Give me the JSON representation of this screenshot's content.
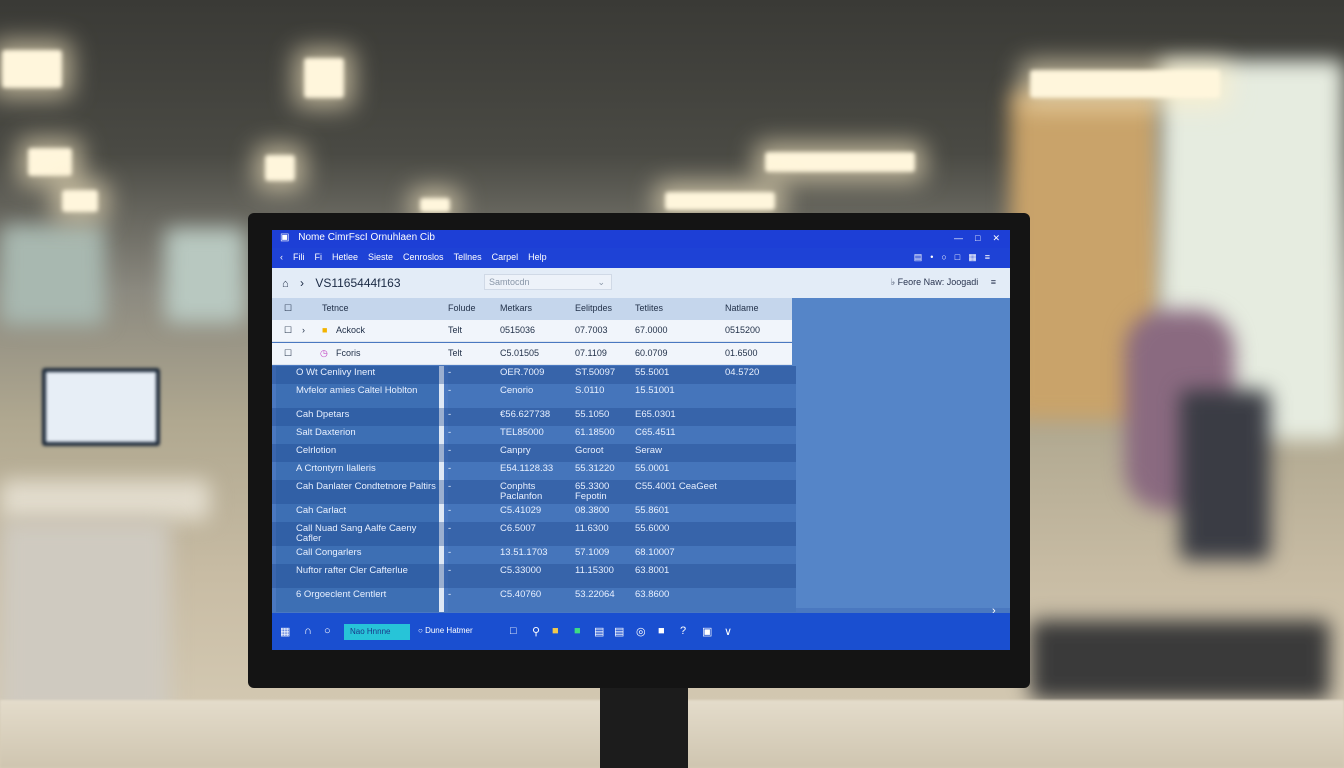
{
  "window": {
    "title": "Nome CimrFscI Ornuhlaen Cib",
    "controls": [
      "-",
      "○",
      "―",
      "□",
      "✕"
    ]
  },
  "menu": [
    "Fili",
    "Fi",
    "Hetlee",
    "Sieste",
    "Cenroslos",
    "Tellnes",
    "Carpel",
    "Help"
  ],
  "toolbar": {
    "record_id": "VS1165444f163",
    "dropdown_value": "Samtocdn",
    "right_label": "Feore Naw: Joogadi"
  },
  "table": {
    "headers": [
      "Tetnce",
      "Folude",
      "Metkars",
      "Eelitpdes",
      "Tetlites",
      "Natlame"
    ],
    "top_rows": [
      {
        "name": "Ackock",
        "type": "Telt",
        "c1": "0515036",
        "c2": "07.7003",
        "c3": "67.0000",
        "c4": "0515200"
      },
      {
        "name": "Fcoris",
        "type": "Telt",
        "c1": "C5.01505",
        "c2": "07.1109",
        "c3": "60.0709",
        "c4": "01.6500"
      }
    ],
    "rows": [
      {
        "name": "O Wt Cenlivy Inent",
        "mark": "-",
        "c1": "OER.7009",
        "c2": "ST.50097",
        "c3": "55.5001",
        "c4": "04.5720"
      },
      {
        "name": "Mvfelor amies Caltel Hoblton",
        "mark": "-",
        "c1": "Cenorio",
        "c2": "S.0110",
        "c3": "15.51001",
        "c4": ""
      },
      {
        "name": "Cah Dpetars",
        "mark": "-",
        "c1": "€56.627738",
        "c2": "55.1050",
        "c3": "E65.0301",
        "c4": ""
      },
      {
        "name": "Salt Daxterion",
        "mark": "-",
        "c1": "TEL85000",
        "c2": "61.18500",
        "c3": "C65.4511",
        "c4": ""
      },
      {
        "name": "Celrlotion",
        "mark": "-",
        "c1": "Canpry",
        "c2": "Gcroot",
        "c3": "Seraw",
        "c4": ""
      },
      {
        "name": "A Crtontyrn Ilalleris",
        "mark": "-",
        "c1": "E54.1128.33",
        "c2": "55.31220",
        "c3": "55.0001",
        "c4": ""
      },
      {
        "name": "Cah Danlater Condtetnore Paltirs",
        "mark": "-",
        "c1": "Conphts Paclanfon",
        "c2": "65.3300 Fepotin",
        "c3": "C55.4001 CeaGeet",
        "c4": ""
      },
      {
        "name": "Cah Carlact",
        "mark": "-",
        "c1": "C5.41029",
        "c2": "08.3800",
        "c3": "55.8601",
        "c4": ""
      },
      {
        "name": "Call Nuad Sang Aalfe Caeny Cafler",
        "mark": "-",
        "c1": "C6.5007",
        "c2": "11.6300",
        "c3": "55.6000",
        "c4": ""
      },
      {
        "name": "Call Congarlers",
        "mark": "-",
        "c1": "13.51.1703",
        "c2": "57.1009",
        "c3": "68.10007",
        "c4": ""
      },
      {
        "name": "Nuftor rafter Cler Cafterlue",
        "mark": "-",
        "c1": "C5.33000",
        "c2": "11.15300",
        "c3": "63.8001",
        "c4": ""
      },
      {
        "name": "6 Orgoeclent Centlert",
        "mark": "-",
        "c1": "C5.40760",
        "c2": "53.22064",
        "c3": "63.8600",
        "c4": ""
      }
    ]
  },
  "taskbar": {
    "search": "Nao Hnnne",
    "status": "Dune Hatmer",
    "icons": [
      "start-icon",
      "task-icon",
      "chat-icon",
      "copy-icon",
      "search-icon",
      "folder-icon",
      "sheet-icon",
      "doc-icon",
      "file-icon",
      "browser-icon",
      "mail-icon",
      "help-icon",
      "app-icon",
      "chevron-icon"
    ]
  }
}
